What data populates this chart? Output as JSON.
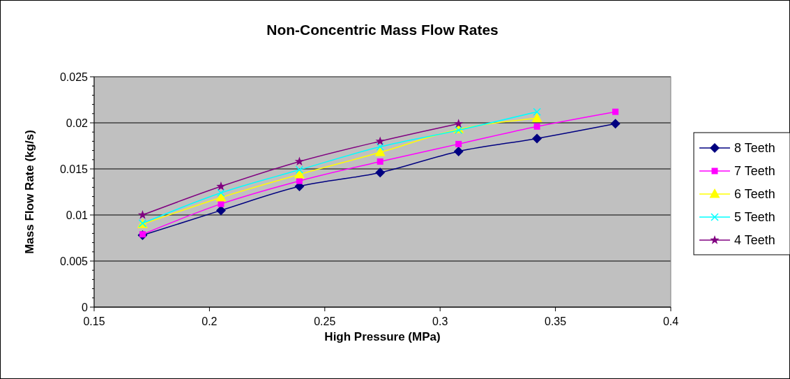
{
  "chart_data": {
    "type": "line",
    "title": "Non-Concentric Mass Flow Rates",
    "xlabel": "High Pressure (MPa)",
    "ylabel": "Mass Flow Rate (kg/s)",
    "x": [
      0.171,
      0.205,
      0.239,
      0.274,
      0.308,
      0.342,
      0.376
    ],
    "series": [
      {
        "name": "8 Teeth",
        "color": "#000080",
        "marker": "diamond",
        "values": [
          0.0078,
          0.0105,
          0.0131,
          0.0146,
          0.0169,
          0.0183,
          0.0199
        ]
      },
      {
        "name": "7 Teeth",
        "color": "#ff00ff",
        "marker": "square",
        "values": [
          0.0079,
          0.0112,
          0.0137,
          0.0158,
          0.0177,
          0.0196,
          0.0212
        ]
      },
      {
        "name": "6 Teeth",
        "color": "#ffff00",
        "marker": "triangle",
        "values": [
          0.009,
          0.0119,
          0.0144,
          0.0168,
          0.0193,
          0.0205,
          null
        ]
      },
      {
        "name": "5 Teeth",
        "color": "#00ffff",
        "marker": "cross",
        "values": [
          0.0091,
          0.0124,
          0.0149,
          0.0174,
          0.0192,
          0.0212,
          null
        ]
      },
      {
        "name": "4 Teeth",
        "color": "#800080",
        "marker": "star",
        "values": [
          0.01,
          0.0131,
          0.0158,
          0.018,
          0.0199,
          null,
          null
        ]
      }
    ],
    "xlim": [
      0.15,
      0.4
    ],
    "xticks": [
      0.15,
      0.2,
      0.25,
      0.3,
      0.35,
      0.4
    ],
    "ylim": [
      0,
      0.025
    ],
    "yticks": [
      0,
      0.005,
      0.01,
      0.015,
      0.02,
      0.025
    ],
    "grid": "y",
    "legend": "right",
    "line_style": "solid"
  }
}
